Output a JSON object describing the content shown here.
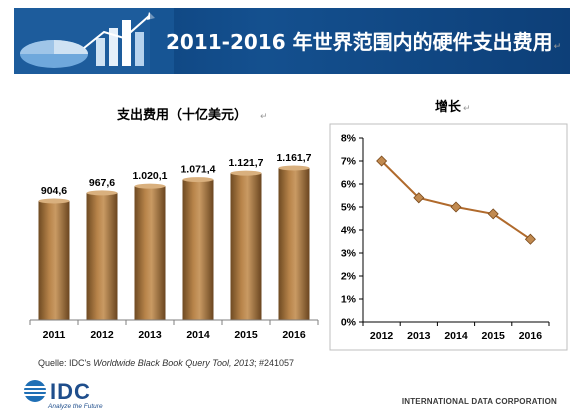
{
  "header": {
    "title": "2011-2016 年世界范围内的硬件支出费用"
  },
  "chart_data": [
    {
      "type": "bar",
      "title": "支出费用（十亿美元）",
      "categories": [
        "2011",
        "2012",
        "2013",
        "2014",
        "2015",
        "2016"
      ],
      "values": [
        904.6,
        967.6,
        1020.1,
        1071.4,
        1121.7,
        1161.7
      ],
      "data_labels": [
        "904,6",
        "967,6",
        "1.020,1",
        "1.071,4",
        "1.121,7",
        "1.161,7"
      ],
      "colors": {
        "bar": "#a8763d",
        "grid": "#7f7f7f"
      }
    },
    {
      "type": "line",
      "title": "增长",
      "x": [
        "2012",
        "2013",
        "2014",
        "2015",
        "2016"
      ],
      "y": [
        7.0,
        5.4,
        5.0,
        4.7,
        3.6
      ],
      "ylim": [
        0,
        8
      ],
      "yticks": [
        "0%",
        "1%",
        "2%",
        "3%",
        "4%",
        "5%",
        "6%",
        "7%",
        "8%"
      ],
      "grid": false,
      "colors": {
        "line": "#b06a2c",
        "marker": "#c18a50"
      }
    }
  ],
  "source": {
    "prefix": "Quelle: IDC's ",
    "title": "Worldwide Black Book Query Tool, 2013",
    "suffix": "; #241057"
  },
  "logo": {
    "name": "IDC",
    "tagline": "Analyze the Future"
  },
  "footer": {
    "company": "INTERNATIONAL DATA CORPORATION"
  }
}
